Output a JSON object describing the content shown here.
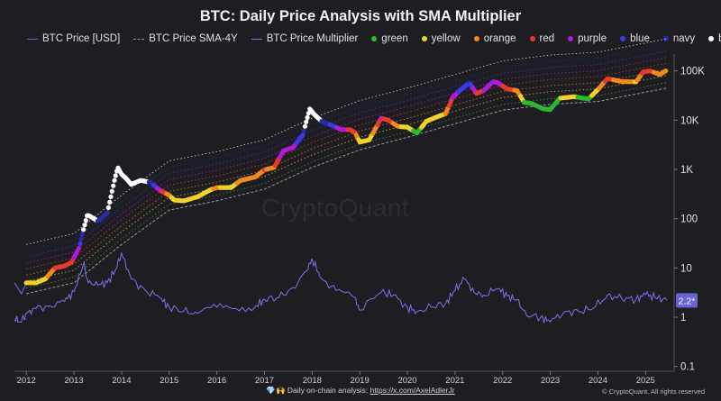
{
  "title": "BTC: Daily Price Analysis with SMA Multiplier",
  "legend": [
    {
      "label": "BTC Price [USD]",
      "kind": "line",
      "color": "#6a63d8"
    },
    {
      "label": "BTC Price SMA-4Y",
      "kind": "dashed",
      "color": "#9a9a9a"
    },
    {
      "label": "BTC Price Multiplier",
      "kind": "line",
      "color": "#7a73ea"
    },
    {
      "label": "green",
      "kind": "dot",
      "color": "#2fb82f"
    },
    {
      "label": "yellow",
      "kind": "dot",
      "color": "#f2d22a"
    },
    {
      "label": "orange",
      "kind": "dot",
      "color": "#f28a1d"
    },
    {
      "label": "red",
      "kind": "dot",
      "color": "#e83a2c"
    },
    {
      "label": "purple",
      "kind": "dot",
      "color": "#b01ad8"
    },
    {
      "label": "blue",
      "kind": "dot",
      "color": "#3a3ae6"
    },
    {
      "label": "navy",
      "kind": "dot",
      "color": "#2a2aa6"
    },
    {
      "label": "black",
      "kind": "dot",
      "color": "#ffffff"
    }
  ],
  "watermark": "CryptoQuant",
  "footer": {
    "icons": "💎🙌",
    "text": "Daily on-chain analysis:",
    "link": "https://x.com/AxelAdlerJr"
  },
  "copyright": "© CryptoQuant. All rights reserved",
  "chart_data": {
    "type": "line",
    "y_scale": "log",
    "ylim": [
      0.08,
      220000
    ],
    "xlim": [
      2011.75,
      2025.6
    ],
    "x_ticks": [
      "2012",
      "2013",
      "2014",
      "2015",
      "2016",
      "2017",
      "2018",
      "2019",
      "2020",
      "2021",
      "2022",
      "2023",
      "2024",
      "2025"
    ],
    "y_ticks": [
      {
        "value": 100000,
        "label": "100K"
      },
      {
        "value": 10000,
        "label": "10K"
      },
      {
        "value": 1000,
        "label": "1K"
      },
      {
        "value": 100,
        "label": "100"
      },
      {
        "value": 10,
        "label": "10"
      },
      {
        "value": 1,
        "label": "1"
      },
      {
        "value": 0.1,
        "label": "0.1"
      }
    ],
    "current_multiplier_label": "2.2*",
    "price": {
      "x": [
        2011.75,
        2011.9,
        2012.0,
        2012.2,
        2012.4,
        2012.6,
        2012.8,
        2012.95,
        2013.1,
        2013.2,
        2013.28,
        2013.35,
        2013.5,
        2013.7,
        2013.85,
        2013.92,
        2014.0,
        2014.1,
        2014.2,
        2014.4,
        2014.6,
        2014.8,
        2015.0,
        2015.1,
        2015.3,
        2015.6,
        2015.85,
        2016.0,
        2016.3,
        2016.5,
        2016.8,
        2017.0,
        2017.2,
        2017.4,
        2017.6,
        2017.8,
        2017.95,
        2018.05,
        2018.2,
        2018.4,
        2018.6,
        2018.8,
        2018.9,
        2019.0,
        2019.2,
        2019.45,
        2019.6,
        2019.8,
        2020.0,
        2020.2,
        2020.4,
        2020.6,
        2020.8,
        2020.95,
        2021.1,
        2021.3,
        2021.45,
        2021.6,
        2021.8,
        2021.9,
        2022.1,
        2022.3,
        2022.45,
        2022.6,
        2022.85,
        2023.0,
        2023.2,
        2023.5,
        2023.8,
        2024.0,
        2024.2,
        2024.5,
        2024.8,
        2024.95,
        2025.1,
        2025.3,
        2025.45
      ],
      "values": [
        5,
        3,
        5,
        5,
        6,
        10,
        11,
        13,
        25,
        60,
        120,
        110,
        90,
        130,
        600,
        1100,
        800,
        650,
        500,
        600,
        550,
        380,
        300,
        240,
        230,
        280,
        380,
        430,
        430,
        600,
        700,
        980,
        1100,
        2400,
        2800,
        5000,
        17000,
        13000,
        9500,
        8000,
        6500,
        6400,
        5600,
        3600,
        4000,
        11000,
        10000,
        7500,
        7200,
        5500,
        9500,
        11500,
        13500,
        29000,
        40000,
        58000,
        35000,
        40000,
        61000,
        57000,
        43000,
        40000,
        23000,
        22000,
        17000,
        16500,
        28000,
        30000,
        27000,
        42000,
        70000,
        61000,
        60000,
        95000,
        100000,
        85000,
        104000
      ]
    },
    "sma4y": {
      "x": [
        2012.0,
        2013.0,
        2014.0,
        2015.0,
        2016.0,
        2017.0,
        2018.0,
        2019.0,
        2020.0,
        2021.0,
        2022.0,
        2023.0,
        2024.0,
        2025.0,
        2025.45
      ],
      "values": [
        3,
        5,
        30,
        150,
        230,
        400,
        1100,
        2500,
        4500,
        8500,
        16000,
        21000,
        24000,
        37000,
        45000
      ]
    },
    "multiplier": {
      "x": [
        2011.75,
        2011.9,
        2012.0,
        2012.2,
        2012.5,
        2012.8,
        2013.0,
        2013.2,
        2013.3,
        2013.5,
        2013.7,
        2013.9,
        2014.0,
        2014.2,
        2014.5,
        2014.8,
        2015.0,
        2015.3,
        2015.6,
        2016.0,
        2016.4,
        2016.8,
        2017.0,
        2017.3,
        2017.6,
        2017.9,
        2018.0,
        2018.2,
        2018.5,
        2018.9,
        2019.0,
        2019.45,
        2019.7,
        2020.0,
        2020.2,
        2020.5,
        2020.8,
        2021.0,
        2021.2,
        2021.4,
        2021.6,
        2021.9,
        2022.1,
        2022.3,
        2022.5,
        2022.8,
        2023.0,
        2023.3,
        2023.6,
        2023.9,
        2024.2,
        2024.5,
        2024.8,
        2025.0,
        2025.2,
        2025.45
      ],
      "values": [
        0.9,
        0.8,
        1.2,
        1.5,
        1.7,
        2.1,
        3.3,
        12,
        5,
        4.5,
        5,
        10,
        20,
        6,
        3.5,
        2.5,
        1.6,
        1.3,
        1.2,
        1.6,
        1.5,
        1.6,
        2.3,
        2.5,
        4,
        9,
        15,
        6,
        3.5,
        2.5,
        1.4,
        3.2,
        2.8,
        1.6,
        1.3,
        1.6,
        1.9,
        3.5,
        6,
        3.2,
        2.8,
        3.8,
        2.7,
        2.2,
        1.1,
        1.0,
        0.8,
        1.3,
        1.3,
        1.5,
        2.8,
        2.4,
        2.3,
        2.9,
        2.5,
        2.2
      ]
    },
    "bands": {
      "multipliers": [
        1.3,
        1.8,
        2.4,
        3.2,
        4.2,
        5.6,
        7.5,
        10
      ],
      "colors": [
        "#2fb82f",
        "#f2d22a",
        "#f28a1d",
        "#e83a2c",
        "#b01ad8",
        "#3a3ae6",
        "#2a2aa6",
        "#ffffff"
      ]
    }
  }
}
